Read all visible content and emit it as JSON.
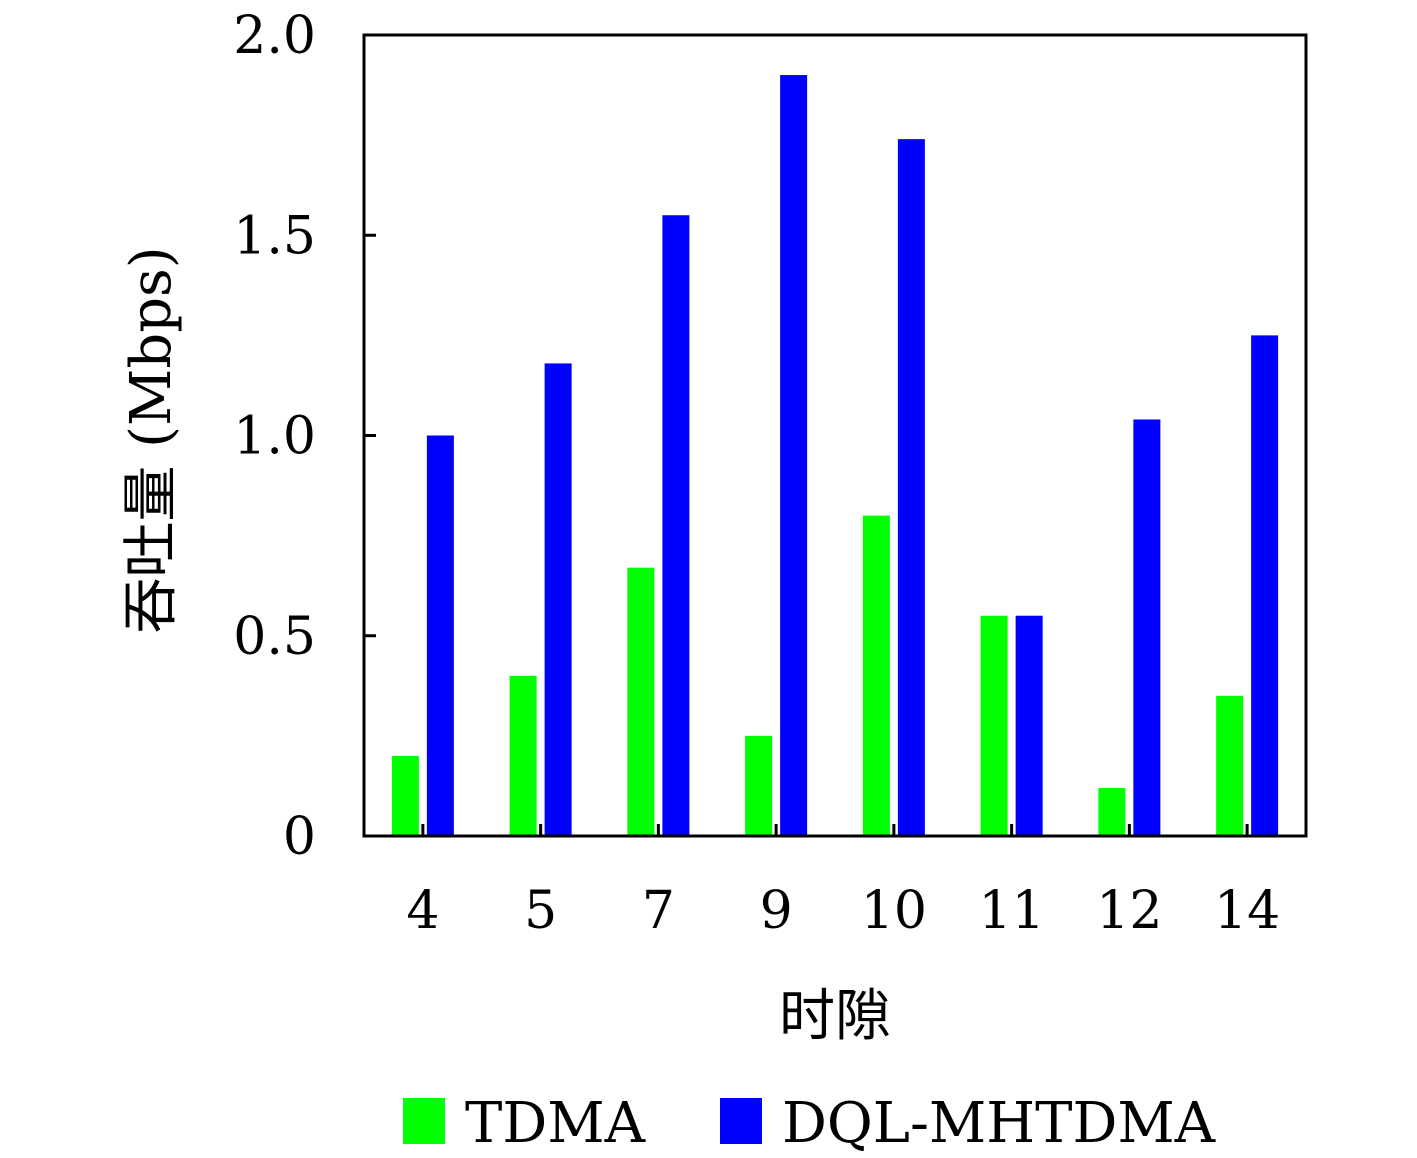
{
  "chart_data": {
    "type": "bar",
    "title": "",
    "xlabel": "时隙",
    "ylabel": "吞吐量 (Mbps)",
    "ylim": [
      0,
      2.0
    ],
    "yticks": [
      "0",
      "0.5",
      "1.0",
      "1.5",
      "2.0"
    ],
    "ytick_values": [
      0,
      0.5,
      1.0,
      1.5,
      2.0
    ],
    "categories": [
      "4",
      "5",
      "7",
      "9",
      "10",
      "11",
      "12",
      "14"
    ],
    "series": [
      {
        "name": "TDMA",
        "color": "#00ff00",
        "values": [
          0.2,
          0.4,
          0.67,
          0.25,
          0.8,
          0.55,
          0.12,
          0.35
        ]
      },
      {
        "name": "DQL-MHTDMA",
        "color": "#0000ff",
        "values": [
          1.0,
          1.18,
          1.55,
          1.9,
          1.74,
          0.55,
          1.04,
          1.25
        ]
      }
    ],
    "grid": false,
    "legend_position": "bottom"
  }
}
